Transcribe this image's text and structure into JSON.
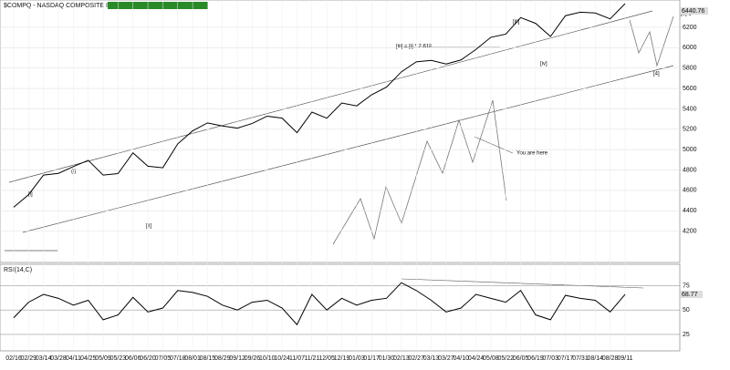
{
  "chart_data": {
    "type": "line",
    "title": "$COMPQ - NASDAQ COMPOSITE IN",
    "last_price_label": "6440.76",
    "categories": [
      "02/16",
      "02/29",
      "03/14",
      "03/28",
      "04/11",
      "04/25",
      "05/09",
      "05/23",
      "06/06",
      "06/20",
      "07/05",
      "07/18",
      "08/01",
      "08/15",
      "08/29",
      "09/12",
      "09/26",
      "10/10",
      "10/24",
      "11/07",
      "11/21",
      "12/05",
      "12/19",
      "01/03",
      "01/17",
      "01/30",
      "02/13",
      "02/27",
      "03/13",
      "03/27",
      "04/10",
      "04/24",
      "05/08",
      "05/22",
      "06/05",
      "06/19",
      "07/03",
      "07/17",
      "07/31",
      "08/14",
      "08/28",
      "09/11"
    ],
    "series": [
      {
        "name": "$COMPQ",
        "color": "#000000",
        "values": [
          4435,
          4558,
          4750,
          4767,
          4833,
          4895,
          4750,
          4765,
          4968,
          4837,
          4822,
          5056,
          5184,
          5262,
          5232,
          5211,
          5257,
          5328,
          5309,
          5166,
          5368,
          5308,
          5457,
          5429,
          5538,
          5613,
          5763,
          5861,
          5875,
          5840,
          5880,
          5983,
          6102,
          6133,
          6295,
          6239,
          6110,
          6314,
          6348,
          6340,
          6283,
          6432
        ]
      }
    ],
    "ylim": [
      4000,
      6450
    ],
    "yticks": [
      4200,
      4400,
      4600,
      4800,
      5000,
      5200,
      5400,
      5600,
      5800,
      6000,
      6200
    ],
    "annotations": [
      "[iii] = [i] * 2.618",
      "You are here",
      "[5] $",
      "[4]",
      "[iii]",
      "[iv]",
      "[ii]",
      "(i)",
      "[i]"
    ],
    "rsi": {
      "label": "RSI(14,C)",
      "last_label": "68.77",
      "color": "#000000",
      "values": [
        42,
        58,
        66,
        62,
        55,
        60,
        40,
        45,
        63,
        48,
        52,
        70,
        68,
        64,
        55,
        50,
        58,
        60,
        52,
        35,
        66,
        50,
        62,
        55,
        60,
        62,
        78,
        70,
        60,
        48,
        52,
        66,
        62,
        58,
        70,
        45,
        40,
        65,
        62,
        60,
        48,
        66
      ],
      "ylim": [
        10,
        95
      ],
      "yticks": [
        25,
        50,
        75
      ]
    }
  }
}
